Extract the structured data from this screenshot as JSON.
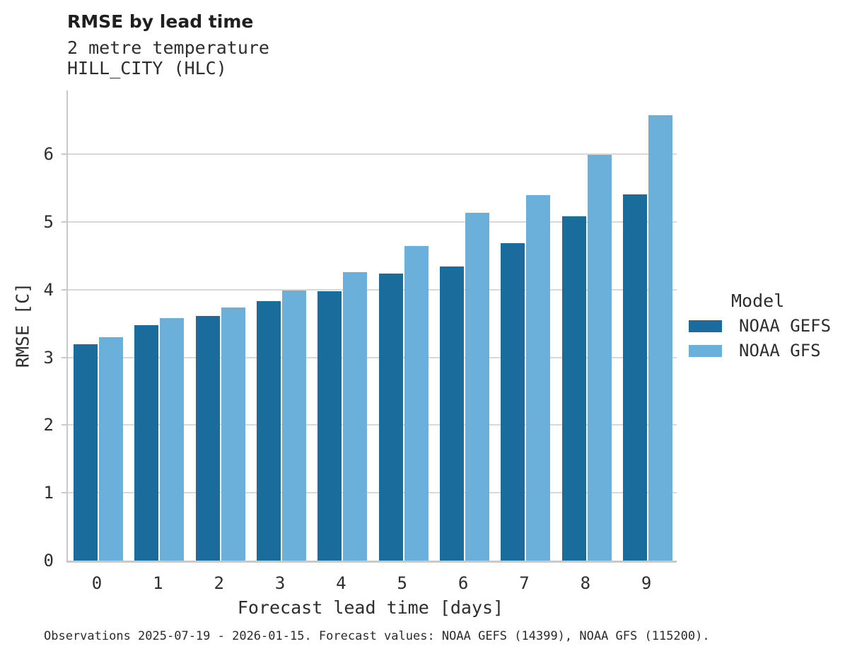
{
  "header": {
    "title": "RMSE by lead time",
    "subtitle1": "2 metre temperature",
    "subtitle2": "HILL_CITY (HLC)"
  },
  "legend": {
    "title": "Model"
  },
  "caption": "Observations 2025-07-19 - 2026-01-15. Forecast values: NOAA GEFS (14399), NOAA GFS (115200).",
  "colors": {
    "gefs_bar": "#1a6c9c",
    "gfs_bar": "#6ab0da",
    "gridline": "#d9d9d9",
    "spine": "#c9c9c9",
    "text": "#2e2e2e"
  },
  "chart_data": {
    "type": "bar",
    "title": "RMSE by lead time",
    "subtitle": [
      "2 metre temperature",
      "HILL_CITY (HLC)"
    ],
    "xlabel": "Forecast lead time [days]",
    "ylabel": "RMSE [C]",
    "categories": [
      "0",
      "1",
      "2",
      "3",
      "4",
      "5",
      "6",
      "7",
      "8",
      "9"
    ],
    "yticks": [
      "0",
      "1",
      "2",
      "3",
      "4",
      "5",
      "6"
    ],
    "ylim": [
      0,
      6.9
    ],
    "grid": "horizontal",
    "legend_title": "Model",
    "legend_position": "right-center",
    "series": [
      {
        "name": "NOAA GEFS",
        "color": "#1a6c9c",
        "values": [
          3.19,
          3.48,
          3.61,
          3.83,
          3.98,
          4.24,
          4.34,
          4.69,
          5.08,
          5.41
        ]
      },
      {
        "name": "NOAA GFS",
        "color": "#6ab0da",
        "values": [
          3.3,
          3.58,
          3.74,
          3.99,
          4.26,
          4.65,
          5.14,
          5.4,
          5.99,
          6.58
        ]
      }
    ]
  }
}
